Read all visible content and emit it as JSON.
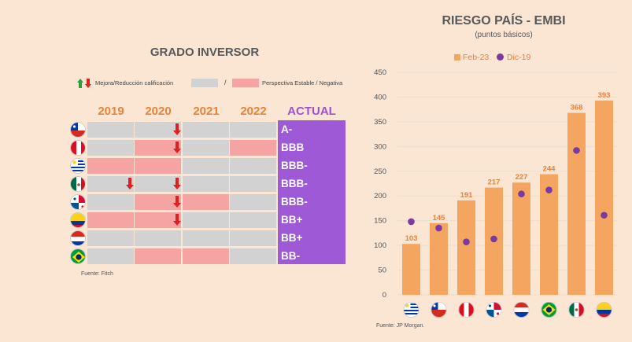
{
  "left": {
    "title": "GRADO INVERSOR",
    "legend": {
      "arrows_text": "Mejora/Reducción calificación",
      "slash": "/",
      "outlook_text": "Perspectiva Estable / Negativa",
      "colors": {
        "stable": "#d2d2d2",
        "negative": "#f6a3a3",
        "arrow_up": "#2e9b3f",
        "arrow_down": "#e02020"
      }
    },
    "years": [
      "2019",
      "2020",
      "2021",
      "2022"
    ],
    "actual_label": "ACTUAL",
    "rows": [
      {
        "country": "Chile",
        "flag": "chile-flag-icon",
        "rating": "A-",
        "cells": [
          "stable",
          "stable",
          "stable",
          "stable"
        ],
        "downgrades": [
          1
        ]
      },
      {
        "country": "Perú",
        "flag": "peru-flag-icon",
        "rating": "BBB",
        "cells": [
          "stable",
          "negative",
          "stable",
          "negative"
        ],
        "downgrades": [
          1
        ]
      },
      {
        "country": "Uruguay",
        "flag": "uruguay-flag-icon",
        "rating": "BBB-",
        "cells": [
          "negative",
          "negative",
          "stable",
          "stable"
        ],
        "downgrades": []
      },
      {
        "country": "México",
        "flag": "mexico-flag-icon",
        "rating": "BBB-",
        "cells": [
          "stable",
          "stable",
          "stable",
          "stable"
        ],
        "downgrades": [
          0,
          1
        ]
      },
      {
        "country": "Panamá",
        "flag": "panama-flag-icon",
        "rating": "BBB-",
        "cells": [
          "stable",
          "negative",
          "negative",
          "stable"
        ],
        "downgrades": [
          1
        ]
      },
      {
        "country": "Colombia",
        "flag": "colombia-flag-icon",
        "rating": "BB+",
        "cells": [
          "negative",
          "negative",
          "stable",
          "stable"
        ],
        "downgrades": [
          1
        ]
      },
      {
        "country": "Paraguay",
        "flag": "paraguay-flag-icon",
        "rating": "BB+",
        "cells": [
          "stable",
          "stable",
          "stable",
          "stable"
        ],
        "downgrades": []
      },
      {
        "country": "Brasil",
        "flag": "brazil-flag-icon",
        "rating": "BB-",
        "cells": [
          "stable",
          "negative",
          "negative",
          "stable"
        ],
        "downgrades": []
      }
    ],
    "source": "Fuente: Fitch"
  },
  "right": {
    "title": "RIESGO PAÍS - EMBI",
    "subtitle": "(puntos básicos)",
    "source": "Fuente: JP Morgan.",
    "colors": {
      "bar": "#f4a661",
      "dot": "#7b3aa0",
      "label": "#e8833a"
    }
  },
  "chart_data": {
    "type": "bar",
    "title": "RIESGO PAÍS - EMBI",
    "subtitle": "(puntos básicos)",
    "categories": [
      "Uruguay",
      "Chile",
      "Perú",
      "Panamá",
      "Paraguay",
      "Brasil",
      "México",
      "Colombia"
    ],
    "category_icons": [
      "uruguay-flag-icon",
      "chile-flag-icon",
      "peru-flag-icon",
      "panama-flag-icon",
      "paraguay-flag-icon",
      "brazil-flag-icon",
      "mexico-flag-icon",
      "colombia-flag-icon"
    ],
    "series": [
      {
        "name": "Feb-23",
        "kind": "bar",
        "values": [
          103,
          145,
          191,
          217,
          227,
          244,
          368,
          393
        ]
      },
      {
        "name": "Dic-19",
        "kind": "dot",
        "values": [
          148,
          135,
          107,
          113,
          204,
          212,
          292,
          161
        ]
      }
    ],
    "ylim": [
      0,
      450
    ],
    "yticks": [
      0,
      50,
      100,
      150,
      200,
      250,
      300,
      350,
      400,
      450
    ],
    "legend_position": "top",
    "grid": true
  }
}
